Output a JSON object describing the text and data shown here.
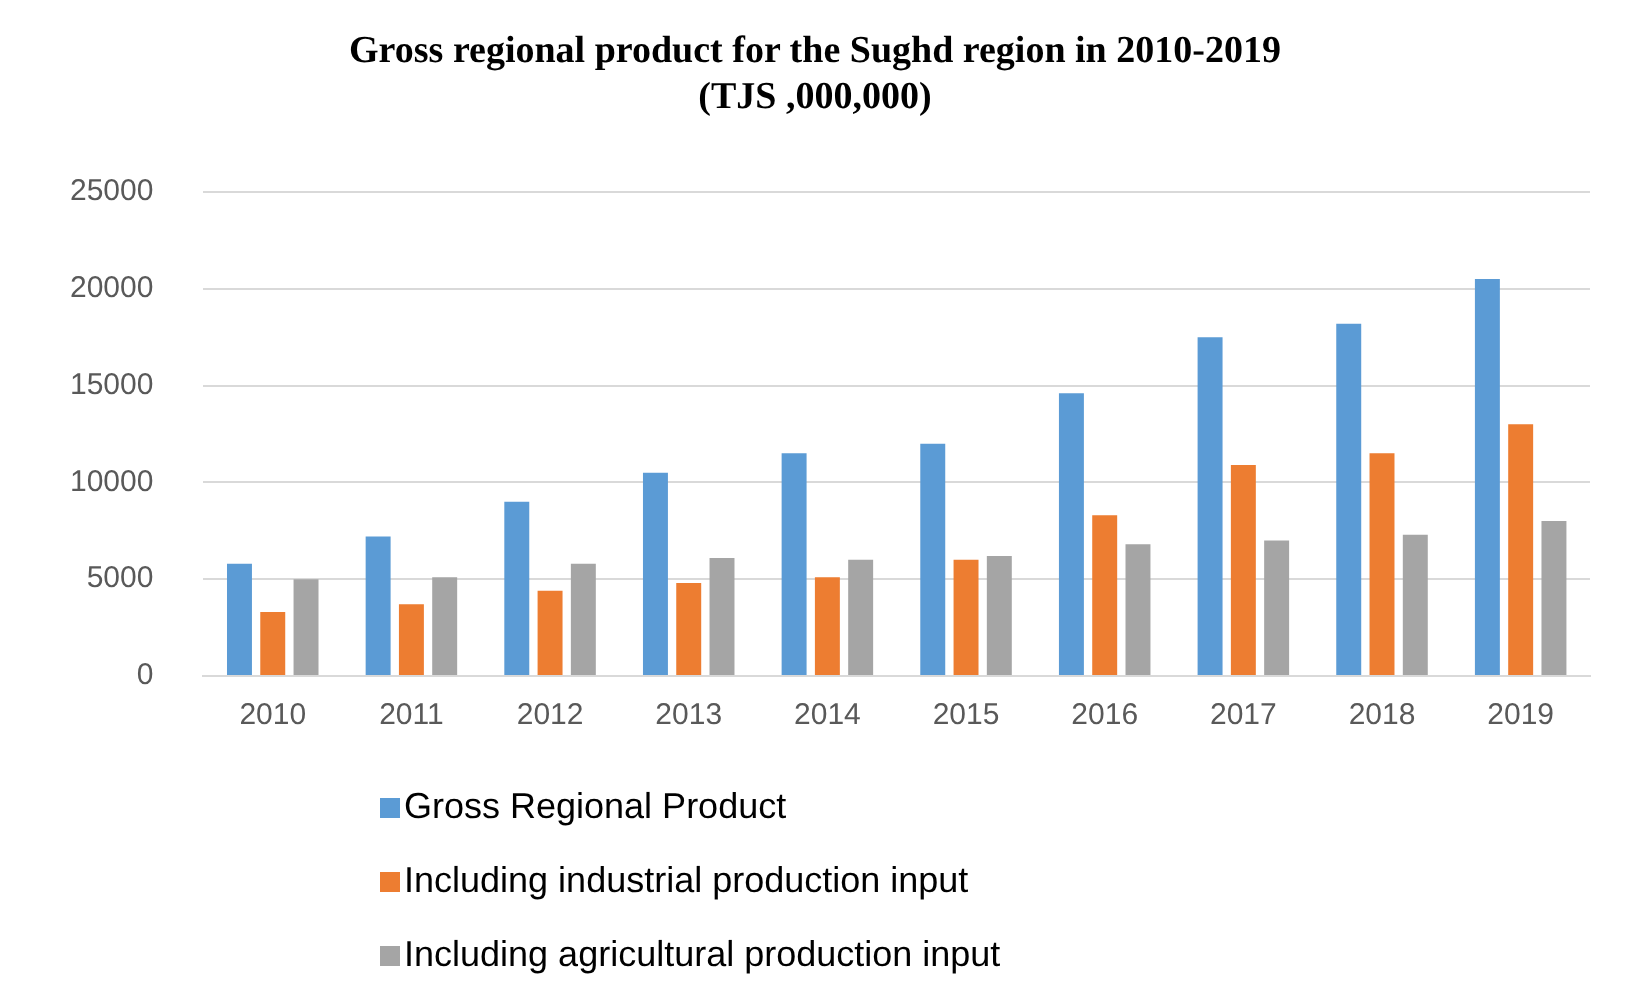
{
  "chart_data": {
    "type": "bar",
    "title": "Gross regional product for the Sughd region in 2010-2019\n(TJS ,000,000)",
    "categories": [
      "2010",
      "2011",
      "2012",
      "2013",
      "2014",
      "2015",
      "2016",
      "2017",
      "2018",
      "2019"
    ],
    "series": [
      {
        "name": "Gross Regional Product",
        "color": "#5b9bd5",
        "values": [
          5800,
          7200,
          9000,
          10500,
          11500,
          12000,
          14600,
          17500,
          18200,
          20500
        ]
      },
      {
        "name": "Including industrial production input",
        "color": "#ed7d31",
        "values": [
          3300,
          3700,
          4400,
          4800,
          5100,
          6000,
          8300,
          10900,
          11500,
          13000
        ]
      },
      {
        "name": "Including agricultural production input",
        "color": "#a5a5a5",
        "values": [
          5000,
          5100,
          5800,
          6100,
          6000,
          6200,
          6800,
          7000,
          7300,
          8000
        ]
      }
    ],
    "ylim": [
      0,
      25000
    ],
    "yticks": [
      0,
      5000,
      10000,
      15000,
      20000,
      25000
    ],
    "grid": "y",
    "legend": "bottom"
  }
}
